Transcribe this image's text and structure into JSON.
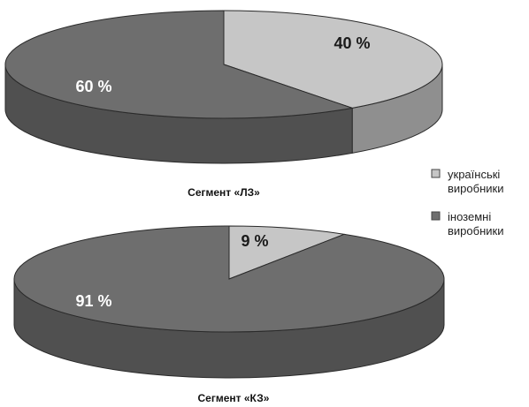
{
  "chart_data": [
    {
      "type": "pie",
      "title": "Сегмент «ЛЗ»",
      "categories": [
        "українські виробники",
        "іноземні виробники"
      ],
      "values": [
        40,
        60
      ],
      "labels": [
        "40 %",
        "60 %"
      ]
    },
    {
      "type": "pie",
      "title": "Сегмент «КЗ»",
      "categories": [
        "українські виробники",
        "іноземні виробники"
      ],
      "values": [
        9,
        91
      ],
      "labels": [
        "9 %",
        "91 %"
      ]
    }
  ],
  "legend": {
    "placement": "right",
    "items": [
      {
        "line1": "українські",
        "line2": "виробники",
        "color": "#c6c6c6"
      },
      {
        "line1": "іноземні",
        "line2": "виробники",
        "color": "#6e6e6e"
      }
    ]
  },
  "colors": {
    "ukrainian_top": "#c6c6c6",
    "ukrainian_side": "#8f8f8f",
    "foreign_top": "#6e6e6e",
    "foreign_side": "#505050",
    "outline": "#2a2a2a"
  }
}
